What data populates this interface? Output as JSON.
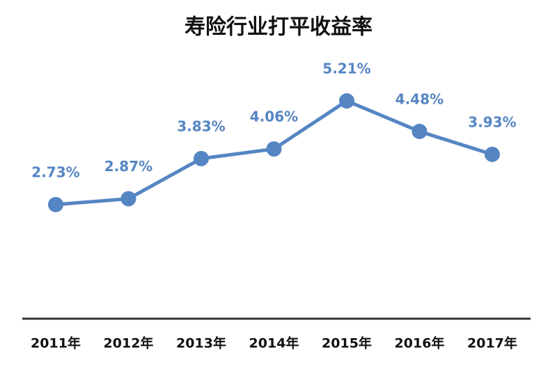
{
  "chart_data": {
    "type": "line",
    "title": "寿险行业打平收益率",
    "categories": [
      "2011年",
      "2012年",
      "2013年",
      "2014年",
      "2015年",
      "2016年",
      "2017年"
    ],
    "series": [
      {
        "name": "打平收益率",
        "color": "#5585c3",
        "values": [
          2.73,
          2.87,
          3.83,
          4.06,
          5.21,
          4.48,
          3.93
        ],
        "value_labels": [
          "2.73%",
          "2.87%",
          "3.83%",
          "4.06%",
          "5.21%",
          "4.48%",
          "3.93%"
        ]
      }
    ]
  }
}
